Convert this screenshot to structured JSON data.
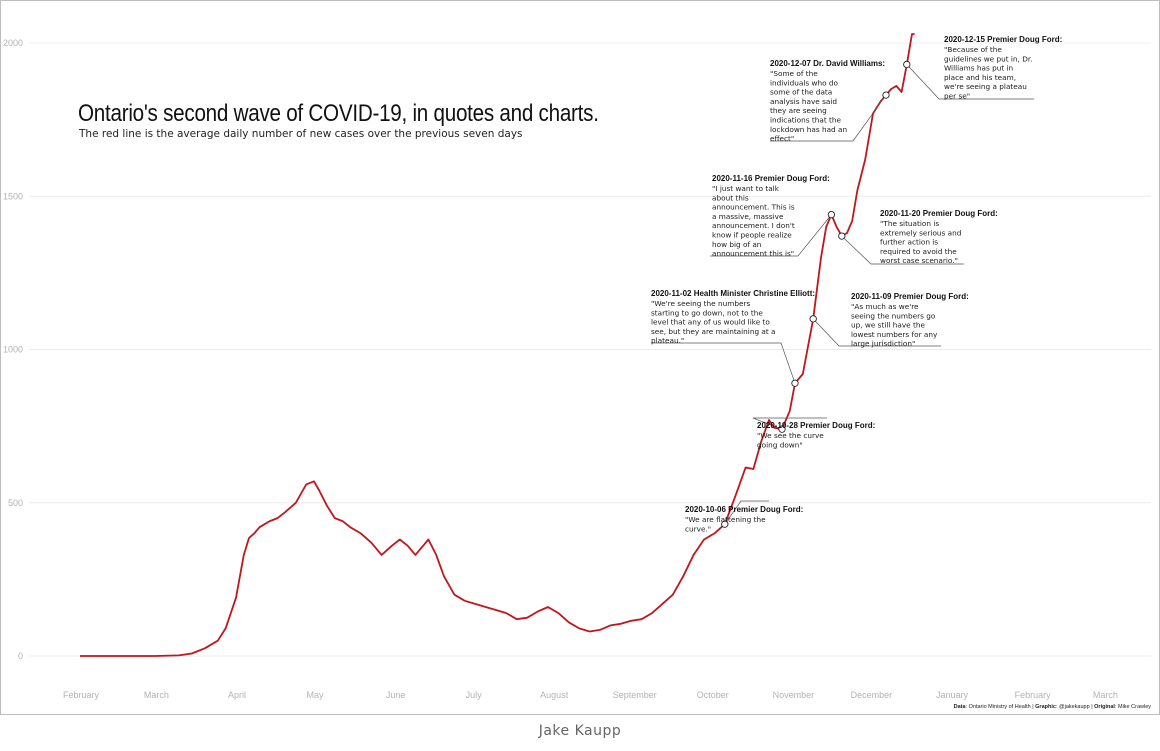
{
  "title": "Ontario's second wave of COVID-19, in quotes and charts.",
  "subtitle": "The red line is the average daily number of new cases over the previous seven days",
  "source": {
    "data_label": "Data",
    "data_value": ": Ontario Ministry of Health | ",
    "graphic_label": "Graphic",
    "graphic_value": ": @jakekaupp | ",
    "original_label": "Original",
    "original_value": ": Mike Crawley"
  },
  "caption": "Jake Kaupp",
  "colors": {
    "line": "#c0161c",
    "grid": "#ececec",
    "tick": "#b3b3b3"
  },
  "chart_data": {
    "type": "line",
    "title": "Ontario's second wave of COVID-19, in quotes and charts.",
    "subtitle": "The red line is the average daily number of new cases over the previous seven days",
    "xlabel": "",
    "ylabel": "",
    "ylim": [
      0,
      2000
    ],
    "xlim": [
      "2020-02-01",
      "2021-03-01"
    ],
    "y_ticks": [
      "0",
      "500",
      "1000",
      "1500",
      "2000"
    ],
    "x_ticks": [
      "February",
      "March",
      "April",
      "May",
      "June",
      "July",
      "August",
      "September",
      "October",
      "November",
      "December",
      "January",
      "February",
      "March"
    ],
    "grid": true,
    "series": [
      {
        "x": [
          "2020-02-01",
          "2020-03-01",
          "2020-03-10",
          "2020-03-15",
          "2020-03-20",
          "2020-03-25",
          "2020-03-28",
          "2020-04-01",
          "2020-04-04",
          "2020-04-06",
          "2020-04-08",
          "2020-04-10",
          "2020-04-12",
          "2020-04-14",
          "2020-04-17",
          "2020-04-20",
          "2020-04-24",
          "2020-04-28",
          "2020-05-01",
          "2020-05-03",
          "2020-05-06",
          "2020-05-09",
          "2020-05-12",
          "2020-05-15",
          "2020-05-19",
          "2020-05-23",
          "2020-05-27",
          "2020-05-31",
          "2020-06-03",
          "2020-06-06",
          "2020-06-09",
          "2020-06-12",
          "2020-06-14",
          "2020-06-17",
          "2020-06-20",
          "2020-06-24",
          "2020-06-28",
          "2020-07-02",
          "2020-07-06",
          "2020-07-10",
          "2020-07-14",
          "2020-07-18",
          "2020-07-22",
          "2020-07-26",
          "2020-07-30",
          "2020-08-03",
          "2020-08-07",
          "2020-08-11",
          "2020-08-15",
          "2020-08-19",
          "2020-08-23",
          "2020-08-27",
          "2020-08-31",
          "2020-09-04",
          "2020-09-08",
          "2020-09-12",
          "2020-09-16",
          "2020-09-20",
          "2020-09-24",
          "2020-09-28",
          "2020-10-02",
          "2020-10-06",
          "2020-10-10",
          "2020-10-14",
          "2020-10-17",
          "2020-10-20",
          "2020-10-23",
          "2020-10-25",
          "2020-10-28",
          "2020-10-31",
          "2020-11-02",
          "2020-11-05",
          "2020-11-09",
          "2020-11-12",
          "2020-11-14",
          "2020-11-16",
          "2020-11-18",
          "2020-11-20",
          "2020-11-22",
          "2020-11-24",
          "2020-11-26",
          "2020-11-29",
          "2020-12-02",
          "2020-12-05",
          "2020-12-07",
          "2020-12-09",
          "2020-12-11",
          "2020-12-13",
          "2020-12-15",
          "2020-12-17",
          "2020-12-18"
        ],
        "values": [
          0,
          0,
          2,
          8,
          25,
          50,
          90,
          190,
          330,
          385,
          400,
          420,
          430,
          440,
          450,
          470,
          500,
          560,
          570,
          540,
          490,
          450,
          440,
          420,
          400,
          370,
          330,
          360,
          380,
          360,
          330,
          360,
          380,
          330,
          260,
          200,
          180,
          170,
          160,
          150,
          140,
          120,
          125,
          145,
          160,
          140,
          110,
          90,
          80,
          85,
          100,
          105,
          115,
          120,
          140,
          170,
          200,
          260,
          330,
          380,
          400,
          430,
          520,
          615,
          610,
          700,
          770,
          745,
          740,
          800,
          890,
          920,
          1100,
          1300,
          1400,
          1440,
          1400,
          1370,
          1380,
          1420,
          1520,
          1620,
          1770,
          1810,
          1830,
          1850,
          1860,
          1840,
          1930,
          2060,
          2130
        ]
      }
    ],
    "annotations": [
      {
        "date": "2020-10-06",
        "speaker": "2020-10-06 Premier Doug Ford:",
        "quote": [
          "\"We are flattening the",
          "curve.\""
        ]
      },
      {
        "date": "2020-10-28",
        "speaker": "2020-10-28 Premier Doug Ford:",
        "quote": [
          "\"We see the curve",
          "going down\""
        ]
      },
      {
        "date": "2020-11-02",
        "speaker": "2020-11-02 Health Minister Christine Elliott:",
        "quote": [
          "\"We're seeing the numbers",
          "starting to go down, not to the",
          "level that any of us would like to",
          "see, but they are maintaining at a",
          "plateau.\""
        ]
      },
      {
        "date": "2020-11-09",
        "speaker": "2020-11-09 Premier Doug Ford:",
        "quote": [
          "\"As much as we're",
          "seeing the numbers go",
          "up, we still have the",
          "lowest numbers for any",
          "large jurisdiction\""
        ]
      },
      {
        "date": "2020-11-16",
        "speaker": "2020-11-16 Premier Doug Ford:",
        "quote": [
          "\"I just want to talk",
          "about this",
          "announcement. This is",
          "a massive, massive",
          "announcement. I don't",
          "know if people realize",
          "how big of an",
          "announcement this is\""
        ]
      },
      {
        "date": "2020-11-20",
        "speaker": "2020-11-20 Premier Doug Ford:",
        "quote": [
          "\"The situation is",
          "extremely serious and",
          "further action is",
          "required to avoid the",
          "worst case scenario.\""
        ]
      },
      {
        "date": "2020-12-07",
        "speaker": "2020-12-07 Dr. David Williams:",
        "quote": [
          "\"Some of the",
          "individuals who do",
          "some of the data",
          "analysis have said",
          "they are seeing",
          "indications that the",
          "lockdown has had an",
          "effect\""
        ]
      },
      {
        "date": "2020-12-15",
        "speaker": "2020-12-15 Premier Doug Ford:",
        "quote": [
          "\"Because of the",
          "guidelines we put in, Dr.",
          "Williams has put in",
          "place and his team,",
          "we're seeing a plateau",
          "per se\""
        ]
      }
    ]
  }
}
